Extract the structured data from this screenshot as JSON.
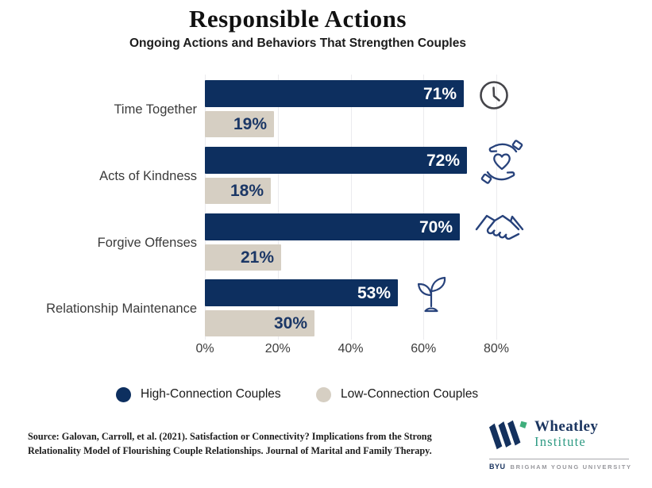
{
  "title": "Responsible Actions",
  "subtitle": "Ongoing Actions and Behaviors That Strengthen Couples",
  "chart_data": {
    "type": "bar",
    "orientation": "horizontal",
    "title": "Responsible Actions",
    "subtitle": "Ongoing Actions and Behaviors That Strengthen Couples",
    "categories": [
      "Time Together",
      "Acts of Kindness",
      "Forgive Offenses",
      "Relationship Maintenance"
    ],
    "series": [
      {
        "name": "High-Connection Couples",
        "color": "#0d2f5f",
        "values": [
          71,
          72,
          70,
          53
        ]
      },
      {
        "name": "Low-Connection Couples",
        "color": "#d6cfc3",
        "values": [
          19,
          18,
          21,
          30
        ]
      }
    ],
    "value_suffix": "%",
    "x_ticks": [
      "0%",
      "20%",
      "40%",
      "60%",
      "80%"
    ],
    "xlim": [
      0,
      80
    ],
    "grid": true,
    "legend_position": "bottom",
    "row_icons": [
      "clock-icon",
      "hands-heart-icon",
      "handshake-icon",
      "sprout-icon"
    ]
  },
  "legend": {
    "items": [
      {
        "label": "High-Connection Couples",
        "color": "#0d2f5f"
      },
      {
        "label": "Low-Connection Couples",
        "color": "#d6cfc3"
      }
    ]
  },
  "source": {
    "lines": [
      "Source: Galovan, Carroll, et al. (2021). Satisfaction or Connectivity? Implications from the Strong",
      "Relationality Model of Flourishing Couple Relationships. Journal of Marital and Family Therapy."
    ]
  },
  "logo": {
    "name_line1": "Wheatley",
    "name_line2": "Institute",
    "byu": "BYU",
    "university": "BRIGHAM YOUNG UNIVERSITY",
    "navy": "#1b3560",
    "teal": "#2f9b84",
    "leaf_green": "#3fae7c"
  },
  "colors": {
    "bar_high": "#0d2f5f",
    "bar_low": "#d6cfc3",
    "gridline": "#ebebee",
    "icon_navy": "#27427b",
    "clock_gray": "#45454a"
  }
}
